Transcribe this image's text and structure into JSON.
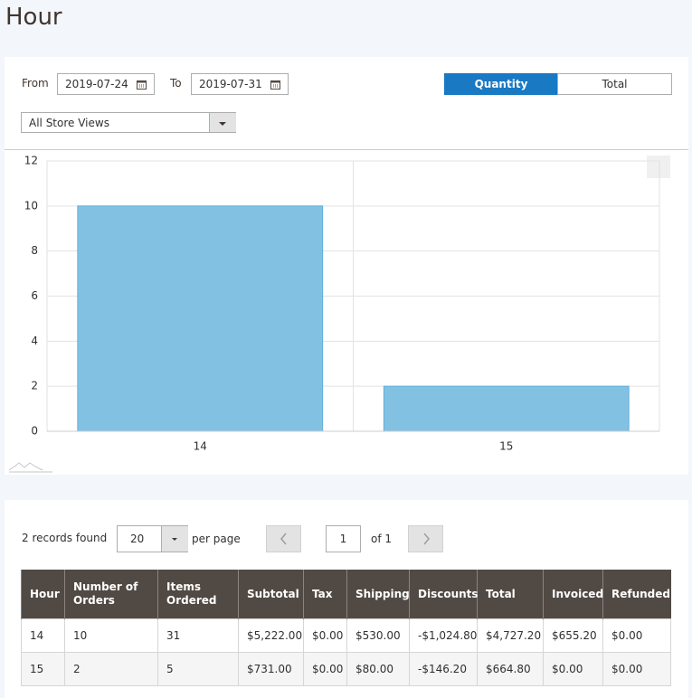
{
  "header": {
    "title": "Hour"
  },
  "filters": {
    "from_label": "From",
    "from_date": "2019-07-24",
    "to_label": "To",
    "to_date": "2019-07-31",
    "toggle": [
      "Quantity",
      "Total"
    ],
    "store": "All Store Views"
  },
  "chart_data": {
    "type": "bar",
    "categories": [
      "14",
      "15"
    ],
    "values": [
      10,
      2
    ],
    "color": "#83c1e2",
    "ylim": [
      0,
      12
    ],
    "yticks": [
      0,
      2,
      4,
      6,
      8,
      10,
      12
    ],
    "grid": true
  },
  "grid": {
    "records": "2 records found",
    "per_page_value": "20",
    "per_page_label": "per page",
    "page": "1",
    "of_pages": "of 1",
    "columns": [
      "Hour",
      "Number of Orders",
      "Items Ordered",
      "Subtotal",
      "Tax",
      "Shipping",
      "Discounts",
      "Total",
      "Invoiced",
      "Refunded"
    ],
    "rows": [
      [
        "14",
        "10",
        "31",
        "$5,222.00",
        "$0.00",
        "$530.00",
        "-$1,024.80",
        "$4,727.20",
        "$655.20",
        "$0.00"
      ],
      [
        "15",
        "2",
        "5",
        "$731.00",
        "$0.00",
        "$80.00",
        "-$146.20",
        "$664.80",
        "$0.00",
        "$0.00"
      ]
    ]
  }
}
